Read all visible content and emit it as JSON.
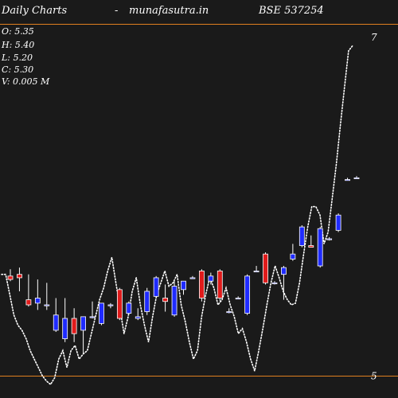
{
  "header": {
    "left": "Daily Charts",
    "sep": "-",
    "site": "munafasutra.in",
    "symbol": "BSE 537254"
  },
  "ohlc": {
    "open": "O: 5.35",
    "high": "H: 5.40",
    "low": "L: 5.20",
    "close": "C: 5.30",
    "volume": "V: 0.005 M"
  },
  "chart_data": {
    "type": "candlestick",
    "ylim": [
      4.87,
      7.22
    ],
    "y_ticks": [
      {
        "label": "7",
        "value": 7.0
      },
      {
        "label": "5",
        "value": 5.0
      }
    ],
    "reference_lines": [
      7.08,
      5.0
    ],
    "colors": {
      "up": "#1f2bff",
      "down": "#e01b1b",
      "wick": "#ffffff",
      "line": "#ffffff",
      "reference": "#e08020",
      "background": "#1a1a1a"
    },
    "candles": [
      {
        "o": 5.59,
        "h": 5.63,
        "l": 5.56,
        "c": 5.57
      },
      {
        "o": 5.6,
        "h": 5.64,
        "l": 5.5,
        "c": 5.58
      },
      {
        "o": 5.45,
        "h": 5.6,
        "l": 5.41,
        "c": 5.42
      },
      {
        "o": 5.43,
        "h": 5.57,
        "l": 5.39,
        "c": 5.46
      },
      {
        "o": 5.42,
        "h": 5.55,
        "l": 5.39,
        "c": 5.42
      },
      {
        "o": 5.27,
        "h": 5.46,
        "l": 5.26,
        "c": 5.36
      },
      {
        "o": 5.22,
        "h": 5.46,
        "l": 5.2,
        "c": 5.34
      },
      {
        "o": 5.34,
        "h": 5.4,
        "l": 5.2,
        "c": 5.25
      },
      {
        "o": 5.27,
        "h": 5.35,
        "l": 5.13,
        "c": 5.35
      },
      {
        "o": 5.35,
        "h": 5.44,
        "l": 5.34,
        "c": 5.35
      },
      {
        "o": 5.31,
        "h": 5.43,
        "l": 5.3,
        "c": 5.43
      },
      {
        "o": 5.42,
        "h": 5.43,
        "l": 5.4,
        "c": 5.42
      },
      {
        "o": 5.51,
        "h": 5.52,
        "l": 5.33,
        "c": 5.34
      },
      {
        "o": 5.37,
        "h": 5.44,
        "l": 5.36,
        "c": 5.43
      },
      {
        "o": 5.34,
        "h": 5.4,
        "l": 5.33,
        "c": 5.35
      },
      {
        "o": 5.38,
        "h": 5.52,
        "l": 5.36,
        "c": 5.5
      },
      {
        "o": 5.47,
        "h": 5.59,
        "l": 5.46,
        "c": 5.58
      },
      {
        "o": 5.46,
        "h": 5.54,
        "l": 5.38,
        "c": 5.44
      },
      {
        "o": 5.36,
        "h": 5.56,
        "l": 5.35,
        "c": 5.53
      },
      {
        "o": 5.51,
        "h": 5.56,
        "l": 5.48,
        "c": 5.56
      },
      {
        "o": 5.58,
        "h": 5.59,
        "l": 5.58,
        "c": 5.58
      },
      {
        "o": 5.62,
        "h": 5.63,
        "l": 5.44,
        "c": 5.46
      },
      {
        "o": 5.56,
        "h": 5.61,
        "l": 5.54,
        "c": 5.59
      },
      {
        "o": 5.62,
        "h": 5.63,
        "l": 5.44,
        "c": 5.46
      },
      {
        "o": 5.38,
        "h": 5.4,
        "l": 5.37,
        "c": 5.38
      },
      {
        "o": 5.46,
        "h": 5.47,
        "l": 5.46,
        "c": 5.46
      },
      {
        "o": 5.37,
        "h": 5.6,
        "l": 5.36,
        "c": 5.59
      },
      {
        "o": 5.62,
        "h": 5.65,
        "l": 5.62,
        "c": 5.62
      },
      {
        "o": 5.72,
        "h": 5.73,
        "l": 5.54,
        "c": 5.55
      },
      {
        "o": 5.55,
        "h": 5.56,
        "l": 5.54,
        "c": 5.55
      },
      {
        "o": 5.6,
        "h": 5.65,
        "l": 5.45,
        "c": 5.64
      },
      {
        "o": 5.69,
        "h": 5.78,
        "l": 5.68,
        "c": 5.72
      },
      {
        "o": 5.77,
        "h": 5.89,
        "l": 5.76,
        "c": 5.88
      },
      {
        "o": 5.77,
        "h": 5.83,
        "l": 5.76,
        "c": 5.76
      },
      {
        "o": 5.65,
        "h": 5.88,
        "l": 5.64,
        "c": 5.87
      },
      {
        "o": 5.81,
        "h": 5.82,
        "l": 5.8,
        "c": 5.81
      },
      {
        "o": 5.86,
        "h": 5.96,
        "l": 5.85,
        "c": 5.95
      },
      {
        "o": 6.16,
        "h": 6.17,
        "l": 6.16,
        "c": 6.16
      },
      {
        "o": 6.17,
        "h": 6.18,
        "l": 6.17,
        "c": 6.17
      }
    ],
    "moving_average": [
      5.6,
      5.6,
      5.48,
      5.36,
      5.3,
      5.27,
      5.22,
      5.15,
      5.1,
      5.05,
      5.0,
      4.97,
      4.95,
      4.99,
      5.1,
      5.15,
      5.05,
      5.15,
      5.18,
      5.1,
      5.13,
      5.15,
      5.25,
      5.35,
      5.45,
      5.52,
      5.62,
      5.7,
      5.55,
      5.4,
      5.25,
      5.35,
      5.5,
      5.58,
      5.42,
      5.3,
      5.2,
      5.35,
      5.48,
      5.55,
      5.62,
      5.53,
      5.55,
      5.6,
      5.42,
      5.32,
      5.2,
      5.1,
      5.15,
      5.35,
      5.48,
      5.58,
      5.52,
      5.42,
      5.45,
      5.52,
      5.42,
      5.35,
      5.25,
      5.28,
      5.2,
      5.1,
      5.03,
      5.15,
      5.28,
      5.42,
      5.55,
      5.65,
      5.58,
      5.5,
      5.45,
      5.42,
      5.43,
      5.55,
      5.72,
      5.88,
      6.0,
      6.0,
      5.95,
      5.78,
      5.85,
      6.05,
      6.25,
      6.48,
      6.7,
      6.92,
      6.95
    ]
  }
}
